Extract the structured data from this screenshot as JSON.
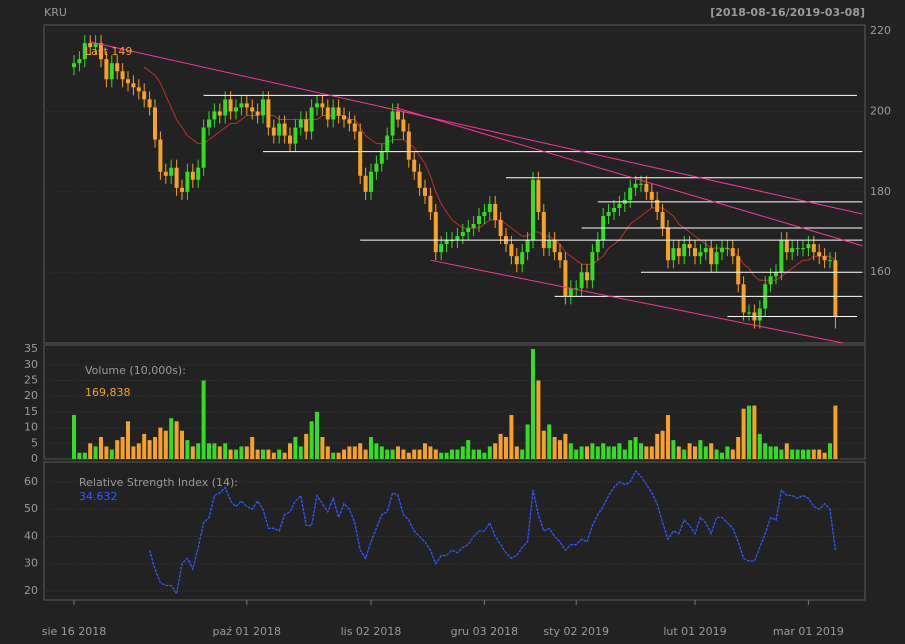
{
  "chart_data": [
    {
      "type": "candlestick",
      "title": "KRU",
      "subtitle": "[2018-08-16/2019-03-08]",
      "annotation": "Last 149",
      "up_color": "#33dd22",
      "down_color": "#f7a128",
      "open": [
        211,
        212,
        213,
        217,
        216,
        217,
        213,
        208,
        212,
        210,
        208,
        207,
        206,
        205,
        203,
        201,
        193,
        185,
        184,
        186,
        181,
        180,
        185,
        183,
        186,
        196,
        198,
        200,
        199,
        203,
        200,
        201,
        202,
        201,
        200,
        199,
        203,
        196,
        194,
        197,
        194,
        192,
        196,
        198,
        195,
        201,
        202,
        201,
        198,
        201,
        199,
        198,
        197,
        195,
        184,
        180,
        185,
        187,
        190,
        194,
        200,
        198,
        195,
        188,
        185,
        181,
        179,
        175,
        165,
        167,
        168,
        168,
        169,
        170,
        171,
        172,
        174,
        175,
        177,
        173,
        169,
        167,
        164,
        162,
        165,
        168,
        183,
        175,
        166,
        168,
        165,
        163,
        154,
        156,
        156,
        160,
        158,
        165,
        168,
        174,
        175,
        176,
        177,
        178,
        181,
        182,
        182,
        180,
        178,
        175,
        171,
        163,
        166,
        164,
        167,
        166,
        164,
        165,
        166,
        162,
        165,
        166,
        166,
        164,
        157,
        150,
        150,
        148,
        151,
        157,
        159,
        160,
        168,
        165,
        166,
        166,
        166,
        167,
        165,
        164,
        163,
        163
      ],
      "high": [
        214,
        215,
        219,
        219,
        219,
        219,
        215,
        214,
        214,
        212,
        210,
        209,
        208,
        207,
        205,
        203,
        195,
        187,
        188,
        188,
        183,
        187,
        187,
        188,
        198,
        200,
        202,
        202,
        205,
        205,
        203,
        204,
        204,
        203,
        202,
        205,
        205,
        198,
        199,
        199,
        196,
        198,
        200,
        200,
        203,
        204,
        204,
        203,
        203,
        203,
        201,
        200,
        199,
        197,
        186,
        187,
        189,
        192,
        196,
        202,
        202,
        200,
        197,
        190,
        187,
        183,
        181,
        177,
        169,
        170,
        170,
        171,
        172,
        173,
        174,
        176,
        177,
        179,
        179,
        175,
        171,
        169,
        166,
        167,
        170,
        185,
        185,
        177,
        170,
        170,
        167,
        165,
        158,
        158,
        162,
        162,
        167,
        170,
        176,
        177,
        178,
        179,
        180,
        183,
        184,
        184,
        184,
        182,
        180,
        177,
        173,
        168,
        168,
        169,
        169,
        168,
        167,
        168,
        168,
        167,
        168,
        168,
        168,
        166,
        159,
        152,
        152,
        153,
        159,
        161,
        162,
        170,
        170,
        168,
        168,
        168,
        169,
        169,
        167,
        166,
        165,
        165
      ],
      "low": [
        209,
        210,
        211,
        214,
        214,
        211,
        206,
        206,
        208,
        206,
        205,
        204,
        203,
        201,
        199,
        191,
        183,
        182,
        182,
        179,
        178,
        178,
        181,
        181,
        184,
        194,
        196,
        197,
        197,
        198,
        198,
        199,
        199,
        198,
        197,
        197,
        194,
        192,
        192,
        192,
        190,
        190,
        194,
        193,
        193,
        199,
        199,
        196,
        196,
        197,
        196,
        195,
        193,
        182,
        178,
        178,
        183,
        185,
        188,
        192,
        196,
        193,
        186,
        183,
        179,
        177,
        173,
        163,
        163,
        165,
        166,
        166,
        167,
        168,
        169,
        170,
        172,
        173,
        171,
        167,
        165,
        162,
        160,
        160,
        163,
        166,
        173,
        164,
        164,
        163,
        161,
        152,
        152,
        154,
        154,
        156,
        156,
        163,
        166,
        172,
        173,
        174,
        175,
        176,
        179,
        180,
        178,
        176,
        173,
        169,
        161,
        161,
        162,
        162,
        164,
        162,
        162,
        163,
        160,
        160,
        163,
        164,
        162,
        155,
        148,
        148,
        146,
        146,
        149,
        155,
        157,
        158,
        163,
        163,
        164,
        164,
        164,
        163,
        162,
        161,
        161,
        146
      ],
      "close": [
        212,
        213,
        217,
        216,
        217,
        213,
        208,
        212,
        210,
        208,
        207,
        206,
        205,
        203,
        201,
        193,
        185,
        184,
        186,
        181,
        180,
        185,
        183,
        186,
        196,
        198,
        200,
        199,
        203,
        200,
        201,
        202,
        201,
        200,
        199,
        203,
        196,
        194,
        197,
        194,
        192,
        196,
        198,
        195,
        201,
        202,
        201,
        198,
        201,
        199,
        198,
        197,
        195,
        184,
        180,
        185,
        187,
        190,
        194,
        200,
        198,
        195,
        188,
        185,
        181,
        179,
        175,
        165,
        167,
        168,
        168,
        169,
        170,
        171,
        172,
        174,
        175,
        177,
        173,
        169,
        167,
        164,
        162,
        165,
        168,
        183,
        175,
        166,
        168,
        165,
        163,
        154,
        156,
        156,
        160,
        158,
        165,
        168,
        174,
        175,
        176,
        177,
        178,
        181,
        182,
        182,
        180,
        178,
        175,
        171,
        163,
        166,
        164,
        167,
        166,
        164,
        165,
        166,
        162,
        165,
        166,
        166,
        164,
        157,
        150,
        150,
        148,
        151,
        157,
        159,
        160,
        168,
        165,
        166,
        166,
        166,
        167,
        165,
        164,
        163,
        163,
        149
      ],
      "sma": {
        "color": "#c0302a",
        "values": [
          null,
          null,
          null,
          null,
          null,
          null,
          null,
          null,
          null,
          null,
          null,
          null,
          null,
          211,
          210,
          209,
          207,
          204,
          201,
          198,
          196,
          194,
          193,
          192,
          192,
          193,
          194,
          195,
          196,
          197,
          197,
          198,
          199,
          199,
          199,
          200,
          199,
          199,
          198,
          198,
          198,
          198,
          198,
          198,
          198,
          198,
          199,
          199,
          199,
          199,
          199,
          198,
          198,
          196,
          194,
          193,
          192,
          192,
          192,
          193,
          193,
          193,
          192,
          191,
          189,
          187,
          184,
          180,
          177,
          175,
          173,
          172,
          171,
          171,
          171,
          171,
          172,
          173,
          173,
          173,
          172,
          171,
          170,
          169,
          169,
          170,
          170,
          169,
          169,
          168,
          167,
          165,
          164,
          163,
          162,
          162,
          162,
          163,
          164,
          166,
          167,
          168,
          170,
          172,
          173,
          174,
          175,
          176,
          176,
          176,
          175,
          174,
          172,
          171,
          170,
          169,
          168,
          167,
          166,
          166,
          166,
          166,
          165,
          164,
          162,
          161,
          159,
          158,
          158,
          158,
          158,
          159,
          160,
          161,
          162,
          163,
          163,
          164,
          164,
          164,
          164,
          163
        ]
      },
      "hlines": {
        "color": "#ffffff",
        "lines": [
          {
            "value": 204,
            "from": 24,
            "to": 145
          },
          {
            "value": 190,
            "from": 35,
            "to": 146
          },
          {
            "value": 183.5,
            "from": 80,
            "to": 146
          },
          {
            "value": 177.5,
            "from": 97,
            "to": 146
          },
          {
            "value": 171,
            "from": 94,
            "to": 146
          },
          {
            "value": 168,
            "from": 53,
            "to": 146
          },
          {
            "value": 160,
            "from": 105,
            "to": 146
          },
          {
            "value": 154,
            "from": 89,
            "to": 146
          },
          {
            "value": 149,
            "from": 121,
            "to": 145
          }
        ]
      },
      "trendlines": {
        "color": "#ff3399",
        "lines": [
          {
            "x": [
              3,
              146
            ],
            "y": [
              217.3,
              174.5
            ]
          },
          {
            "x": [
              59.4,
              146
            ],
            "y": [
              201,
              166.6
            ]
          },
          {
            "x": [
              66,
              142.4
            ],
            "y": [
              163,
              142.4
            ]
          }
        ]
      },
      "ylim": [
        142.4,
        221.5
      ],
      "yticks": [
        160,
        180,
        200,
        220
      ],
      "grid": true
    },
    {
      "type": "bar",
      "label": "Volume (10,000s):",
      "last_label": "169,838",
      "values": [
        14,
        2,
        2,
        5,
        4,
        7,
        4,
        3,
        6,
        7,
        12,
        4,
        5,
        8,
        6,
        7,
        10,
        9,
        13,
        12,
        9,
        6,
        4,
        5,
        25,
        5,
        5,
        4,
        5,
        3,
        3,
        4,
        4,
        7,
        3,
        3,
        3,
        2,
        3,
        2,
        5,
        7,
        4,
        8,
        12,
        15,
        7,
        4,
        2,
        2,
        3,
        4,
        4,
        5,
        3,
        7,
        5,
        4,
        3,
        3,
        4,
        3,
        2,
        3,
        3,
        5,
        4,
        3,
        2,
        2,
        3,
        3,
        4,
        6,
        3,
        3,
        2,
        4,
        5,
        8,
        7,
        14,
        4,
        3,
        11,
        35,
        25,
        9,
        11,
        7,
        6,
        8,
        5,
        3,
        4,
        4,
        5,
        4,
        5,
        4,
        4,
        5,
        3,
        6,
        7,
        5,
        4,
        4,
        8,
        9,
        14,
        6,
        4,
        3,
        5,
        4,
        6,
        4,
        5,
        3,
        2,
        4,
        3,
        7,
        16,
        17,
        17,
        8,
        5,
        4,
        4,
        3,
        5,
        3,
        3,
        3,
        3,
        3,
        3,
        2,
        5,
        17
      ],
      "ylim": [
        0,
        36.3
      ],
      "yticks": [
        0,
        5,
        10,
        15,
        20,
        25,
        30,
        35
      ],
      "grid": true
    },
    {
      "type": "line",
      "label": "Relative Strength Index (14):",
      "last_label": "34.632",
      "color": "#3355ff",
      "values": [
        null,
        null,
        null,
        null,
        null,
        null,
        null,
        null,
        null,
        null,
        null,
        null,
        null,
        null,
        35,
        28,
        23,
        22,
        22,
        19,
        30,
        32,
        28,
        36,
        45,
        47,
        55,
        56,
        58,
        53,
        51,
        53,
        51,
        50,
        53,
        50,
        43,
        43,
        42,
        48,
        49,
        53,
        55,
        44,
        44,
        55,
        52,
        49,
        54,
        47,
        52,
        50,
        45,
        35,
        32,
        38,
        43,
        48,
        49,
        56,
        55,
        48,
        46,
        42,
        40,
        38,
        35,
        30,
        33,
        33,
        35,
        34,
        36,
        37,
        40,
        42,
        42,
        45,
        40,
        37,
        34,
        32,
        33,
        36,
        38,
        57,
        48,
        42,
        43,
        40,
        38,
        35,
        37,
        37,
        39,
        38,
        44,
        48,
        51,
        55,
        58,
        60,
        59,
        60,
        64,
        62,
        59,
        56,
        52,
        45,
        39,
        42,
        41,
        46,
        44,
        41,
        47,
        45,
        41,
        47,
        47,
        45,
        43,
        38,
        32,
        31,
        31,
        36,
        41,
        47,
        46,
        57,
        55,
        55,
        54,
        55,
        54,
        51,
        50,
        52,
        50,
        35
      ],
      "categories": [
        "sie 16 2018",
        null,
        null,
        null,
        null,
        null,
        null,
        null,
        null,
        null,
        null,
        null,
        null,
        null,
        null,
        null,
        null,
        null,
        null,
        null,
        null,
        null,
        null,
        null,
        null,
        null,
        null,
        null,
        null,
        null,
        null,
        null,
        "paź 01 2018",
        null,
        null,
        null,
        null,
        null,
        null,
        null,
        null,
        null,
        null,
        null,
        null,
        null,
        null,
        null,
        null,
        null,
        null,
        null,
        null,
        null,
        null,
        "lis 02 2018",
        null,
        null,
        null,
        null,
        null,
        null,
        null,
        null,
        null,
        null,
        null,
        null,
        null,
        null,
        null,
        null,
        null,
        null,
        null,
        null,
        "gru 03 2018",
        null,
        null,
        null,
        null,
        null,
        null,
        null,
        null,
        null,
        null,
        null,
        null,
        null,
        null,
        null,
        null,
        "sty 02 2019",
        null,
        null,
        null,
        null,
        null,
        null,
        null,
        null,
        null,
        null,
        null,
        null,
        null,
        null,
        null,
        null,
        null,
        null,
        null,
        null,
        null,
        "lut 01 2019",
        null,
        null,
        null,
        null,
        null,
        null,
        null,
        null,
        null,
        null,
        null,
        null,
        null,
        null,
        null,
        null,
        null,
        null,
        null,
        null,
        "mar 01 2019",
        null,
        null,
        null,
        null,
        null
      ],
      "ylim": [
        16.7,
        67.3
      ],
      "yticks": [
        20,
        30,
        40,
        50,
        60
      ],
      "grid": true
    }
  ]
}
